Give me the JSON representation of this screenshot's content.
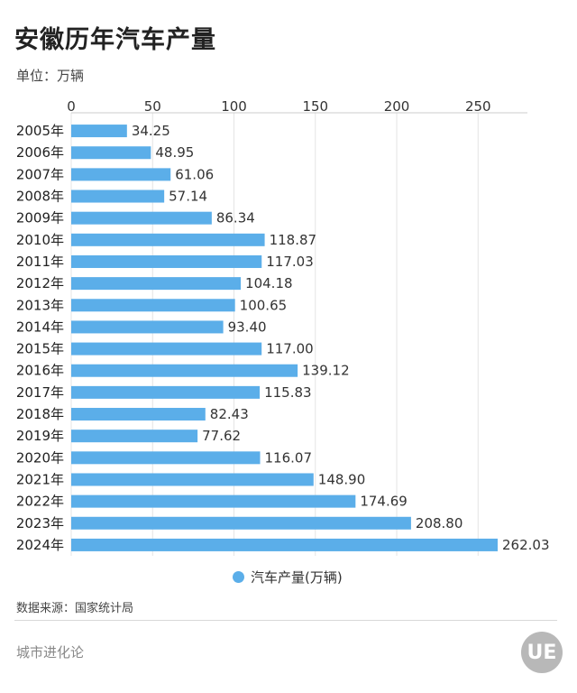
{
  "header": {
    "title": "安徽历年汽车产量",
    "unit_label": "单位：万辆"
  },
  "chart_data": {
    "type": "bar",
    "orientation": "horizontal",
    "title": "安徽历年汽车产量",
    "xlabel": "",
    "ylabel": "",
    "xlim": [
      0,
      262.03
    ],
    "x_ticks": [
      0,
      50,
      100,
      150,
      200,
      250
    ],
    "grid": true,
    "legend_position": "bottom",
    "bar_color": "#5baee9",
    "categories": [
      "2005年",
      "2006年",
      "2007年",
      "2008年",
      "2009年",
      "2010年",
      "2011年",
      "2012年",
      "2013年",
      "2014年",
      "2015年",
      "2016年",
      "2017年",
      "2018年",
      "2019年",
      "2020年",
      "2021年",
      "2022年",
      "2023年",
      "2024年"
    ],
    "series": [
      {
        "name": "汽车产量(万辆)",
        "values": [
          34.25,
          48.95,
          61.06,
          57.14,
          86.34,
          118.87,
          117.03,
          104.18,
          100.65,
          93.4,
          117.0,
          139.12,
          115.83,
          82.43,
          77.62,
          116.07,
          148.9,
          174.69,
          208.8,
          262.03
        ],
        "labels": [
          "34.25",
          "48.95",
          "61.06",
          "57.14",
          "86.34",
          "118.87",
          "117.03",
          "104.18",
          "100.65",
          "93.40",
          "117.00",
          "139.12",
          "115.83",
          "82.43",
          "77.62",
          "116.07",
          "148.90",
          "174.69",
          "208.80",
          "262.03"
        ]
      }
    ]
  },
  "legend": {
    "label": "汽车产量(万辆)"
  },
  "footer": {
    "source": "数据来源：国家统计局",
    "brand": "城市进化论",
    "logo_text": "UE"
  }
}
